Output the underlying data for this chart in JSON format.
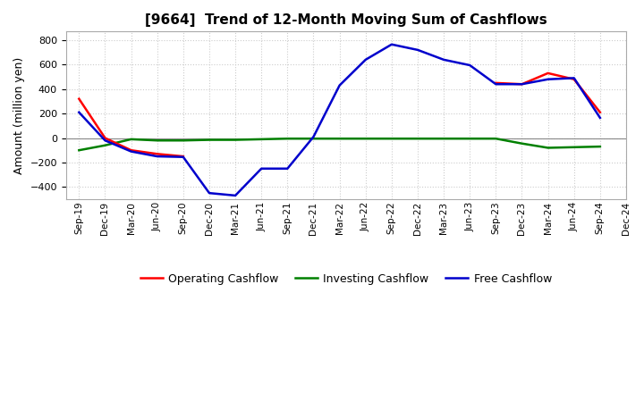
{
  "title": "[9664]  Trend of 12-Month Moving Sum of Cashflows",
  "ylabel": "Amount (million yen)",
  "ylim": [
    -500,
    870
  ],
  "yticks": [
    -400,
    -200,
    0,
    200,
    400,
    600,
    800
  ],
  "background_color": "#ffffff",
  "plot_bg_color": "#ffffff",
  "grid_color": "#cccccc",
  "labels": [
    "Sep-19",
    "Dec-19",
    "Mar-20",
    "Jun-20",
    "Sep-20",
    "Dec-20",
    "Mar-21",
    "Jun-21",
    "Sep-21",
    "Dec-21",
    "Mar-22",
    "Jun-22",
    "Sep-22",
    "Dec-22",
    "Mar-23",
    "Jun-23",
    "Sep-23",
    "Dec-23",
    "Mar-24",
    "Jun-24",
    "Sep-24",
    "Dec-24"
  ],
  "operating_x1": [
    0,
    1,
    2,
    3,
    4
  ],
  "operating_y1": [
    320,
    0,
    -100,
    -130,
    -150
  ],
  "operating_x2": [
    16,
    17,
    18,
    19,
    20
  ],
  "operating_y2": [
    450,
    440,
    530,
    480,
    210
  ],
  "investing_x": [
    0,
    1,
    2,
    3,
    4,
    5,
    6,
    7,
    8,
    9,
    10,
    11,
    12,
    13,
    14,
    15,
    16,
    17,
    18,
    19,
    20
  ],
  "investing_y": [
    -100,
    -60,
    -10,
    -20,
    -20,
    -15,
    -15,
    -10,
    -5,
    -5,
    -5,
    -5,
    -5,
    -5,
    -5,
    -5,
    -5,
    -45,
    -80,
    -75,
    -70
  ],
  "free_x": [
    0,
    1,
    2,
    3,
    4,
    5,
    6,
    7,
    8,
    9,
    10,
    11,
    12,
    13,
    14,
    15,
    16,
    17,
    18,
    19,
    20
  ],
  "free_y": [
    210,
    -20,
    -110,
    -150,
    -155,
    -450,
    -470,
    -250,
    -250,
    10,
    430,
    640,
    765,
    720,
    640,
    595,
    440,
    440,
    480,
    490,
    165
  ],
  "operating_color": "#ff0000",
  "investing_color": "#008000",
  "free_color": "#0000cc",
  "line_width": 1.8,
  "legend_labels": [
    "Operating Cashflow",
    "Investing Cashflow",
    "Free Cashflow"
  ]
}
